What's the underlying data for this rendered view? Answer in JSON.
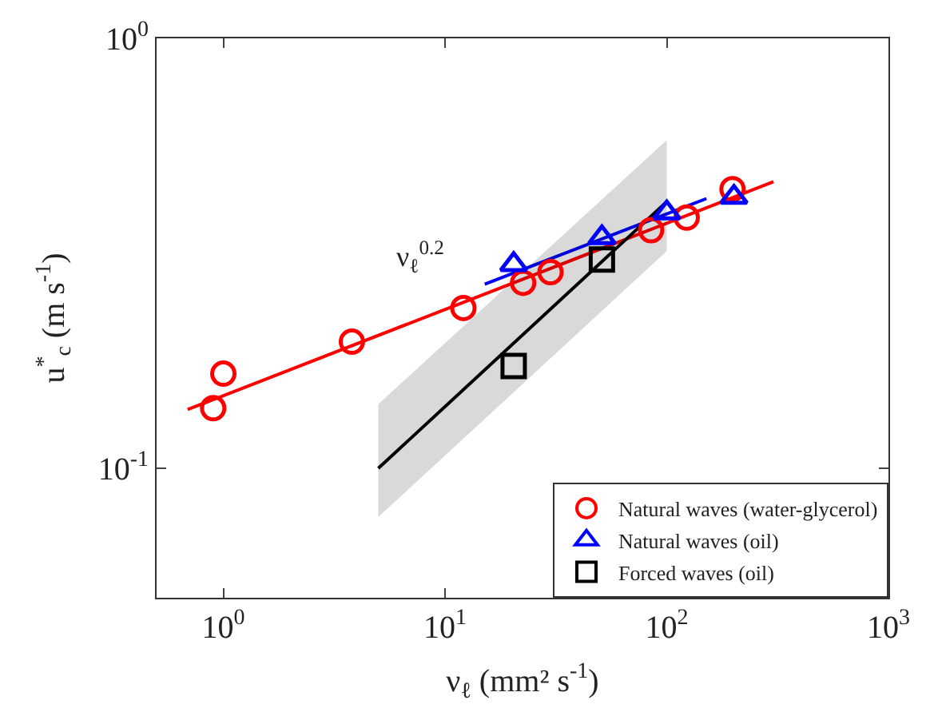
{
  "chart_data": {
    "type": "scatter",
    "xlabel": "ν$_{ℓ}$ (mm² s$^{-1}$)",
    "ylabel": "u$^{*}$$_{c}$ (m s$^{-1}$)",
    "log": "xy",
    "xlim": [
      0.5,
      1000
    ],
    "ylim": [
      0.05,
      1
    ],
    "xticks": [
      {
        "value": 1,
        "label": "10$^{0}$"
      },
      {
        "value": 10,
        "label": "10$^{1}$"
      },
      {
        "value": 100,
        "label": "10$^{2}$"
      },
      {
        "value": 1000,
        "label": "10$^{3}$"
      }
    ],
    "yticks": [
      {
        "value": 0.1,
        "label": "10$^{-1}$"
      },
      {
        "value": 1,
        "label": "10$^{0}$"
      }
    ],
    "legend": "bottom right",
    "annotations": [
      "ν$_{ℓ}$$^{0.2}$"
    ],
    "series": [
      {
        "type": "line",
        "color": "#ff0000",
        "x": [
          0.69,
          303
        ],
        "values": [
          0.137,
          0.464
        ],
        "marker": "none"
      },
      {
        "type": "line",
        "color": "#0000ff",
        "x": [
          15.1,
          151
        ],
        "values": [
          0.268,
          0.424
        ],
        "marker": "none"
      },
      {
        "type": "line",
        "color": "#000000",
        "x": [
          5,
          100
        ],
        "values": [
          0.1,
          0.417
        ],
        "lower": [
          0.077,
          0.32
        ],
        "upper": [
          0.141,
          0.58
        ],
        "marker": "none"
      },
      {
        "name": "Natural waves (water-glycerol)",
        "color": "#ff0000",
        "marker": "circle",
        "x": [
          0.9,
          1,
          3.8,
          12.1,
          22.5,
          29.9,
          85,
          123,
          198
        ],
        "values": [
          0.138,
          0.166,
          0.197,
          0.236,
          0.27,
          0.286,
          0.358,
          0.383,
          0.446
        ]
      },
      {
        "name": "Natural waves (oil)",
        "color": "#0000ff",
        "marker": "triangle",
        "x": [
          20.4,
          51,
          100,
          201
        ],
        "values": [
          0.298,
          0.344,
          0.393,
          0.427
        ]
      },
      {
        "name": "Forced waves (oil)",
        "color": "#000000",
        "marker": "square",
        "x": [
          20.4,
          51
        ],
        "values": [
          0.173,
          0.306
        ]
      }
    ]
  }
}
